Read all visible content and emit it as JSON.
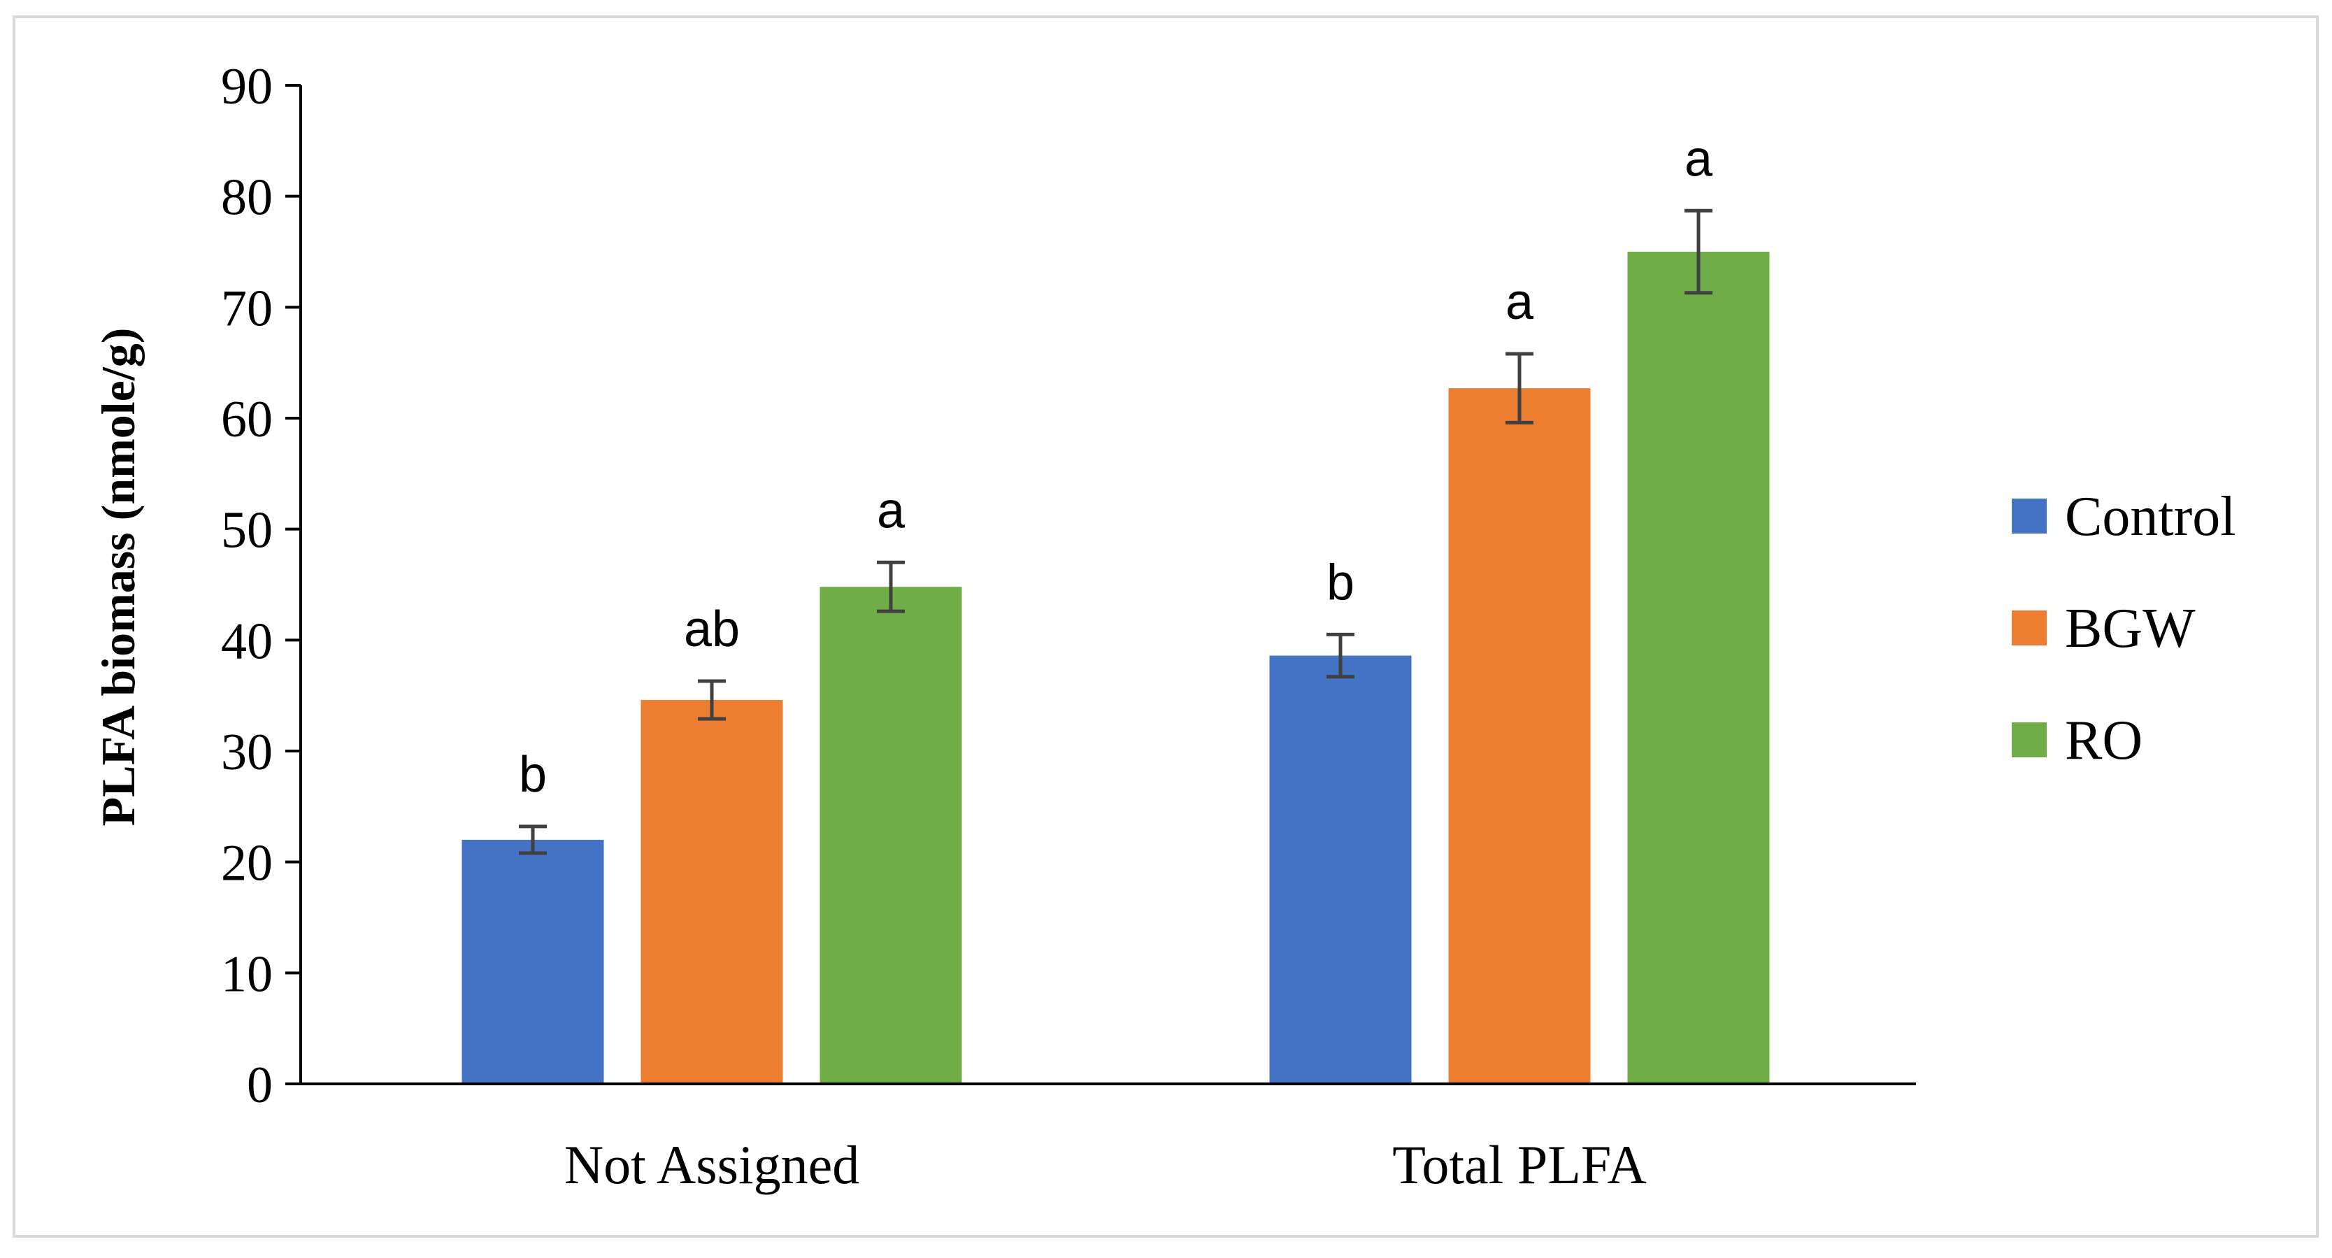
{
  "chart_data": {
    "type": "bar",
    "categories": [
      "Not Assigned",
      "Total PLFA"
    ],
    "series": [
      {
        "name": "Control",
        "color": "#4472C4",
        "values": [
          22.0,
          38.6
        ],
        "errors": [
          1.2,
          1.9
        ],
        "letters": [
          "b",
          "b"
        ]
      },
      {
        "name": "BGW",
        "color": "#ED7D31",
        "values": [
          34.6,
          62.7
        ],
        "errors": [
          1.7,
          3.1
        ],
        "letters": [
          "ab",
          "a"
        ]
      },
      {
        "name": "RO",
        "color": "#70AD47",
        "values": [
          44.8,
          75.0
        ],
        "errors": [
          2.2,
          3.7
        ],
        "letters": [
          "a",
          "a"
        ]
      }
    ],
    "ylabel": "PLFA biomass (nmole/g)",
    "xlabel": "",
    "ylim": [
      0,
      90
    ],
    "yticks": [
      0,
      10,
      20,
      30,
      40,
      50,
      60,
      70,
      80,
      90
    ],
    "grid": false,
    "legend_position": "right"
  }
}
